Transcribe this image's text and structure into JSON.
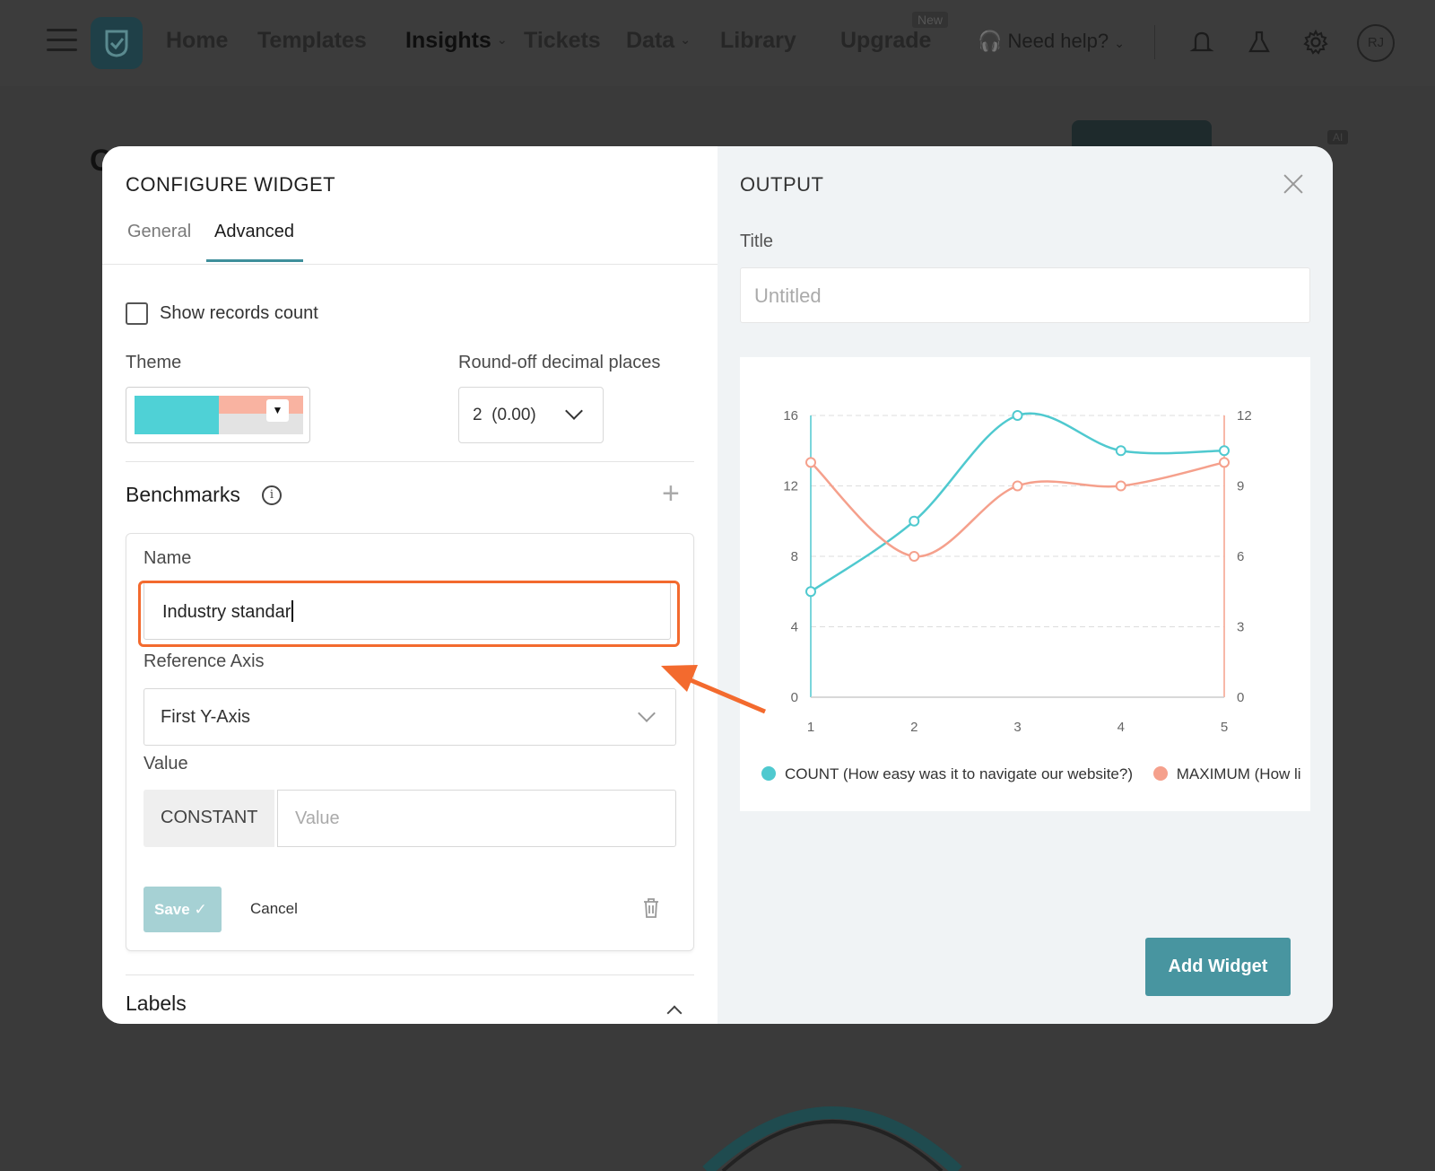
{
  "nav": {
    "items": [
      {
        "label": "Home",
        "dropdown": false
      },
      {
        "label": "Templates",
        "dropdown": false
      },
      {
        "label": "Insights",
        "dropdown": true
      },
      {
        "label": "Tickets",
        "dropdown": false
      },
      {
        "label": "Data",
        "dropdown": true
      },
      {
        "label": "Library",
        "dropdown": false
      },
      {
        "label": "Upgrade",
        "dropdown": false
      }
    ],
    "new_badge": "New",
    "help": "Need help?",
    "avatar_initials": "RJ",
    "icons": [
      "menu-icon",
      "app-logo-icon",
      "bell-icon",
      "flask-icon",
      "gear-icon"
    ]
  },
  "background": {
    "ai_badge": "AI"
  },
  "modal": {
    "title": "CONFIGURE WIDGET",
    "tabs": [
      {
        "label": "General",
        "active": false
      },
      {
        "label": "Advanced",
        "active": true
      }
    ],
    "show_records_count": {
      "label": "Show records count",
      "checked": false
    },
    "theme": {
      "label": "Theme",
      "colors": [
        "#4fd1d6",
        "#f9b3a1",
        "#e3e3e3"
      ]
    },
    "decimals": {
      "label": "Round-off decimal places",
      "value": "2  (0.00)"
    },
    "benchmarks": {
      "title": "Benchmarks",
      "name_label": "Name",
      "name_value": "Industry standar",
      "axis_label": "Reference Axis",
      "axis_value": "First Y-Axis",
      "value_label": "Value",
      "value_type": "CONSTANT",
      "value_placeholder": "Value",
      "save_label": "Save",
      "cancel_label": "Cancel"
    },
    "labels_section": "Labels"
  },
  "output": {
    "title": "OUTPUT",
    "title_field_label": "Title",
    "title_placeholder": "Untitled",
    "add_widget_label": "Add Widget",
    "accent": "#4895a0"
  },
  "chart_data": {
    "type": "line",
    "x": [
      1,
      2,
      3,
      4,
      5
    ],
    "series": [
      {
        "name": "COUNT (How easy was it to navigate our website?)",
        "axis": "left",
        "color": "#4fc9cf",
        "values": [
          6,
          10,
          16,
          14,
          14
        ]
      },
      {
        "name": "MAXIMUM (How li",
        "axis": "right",
        "color": "#f5a08c",
        "values": [
          10,
          6,
          9,
          9,
          10
        ]
      }
    ],
    "y_left": {
      "ticks": [
        0,
        4,
        8,
        12,
        16
      ],
      "range": [
        0,
        16
      ]
    },
    "y_right": {
      "ticks": [
        0,
        3,
        6,
        9,
        12
      ],
      "range": [
        0,
        12
      ]
    },
    "x_ticks": [
      "1",
      "2",
      "3",
      "4",
      "5"
    ],
    "grid": "horizontal-dashed",
    "legend_position": "bottom"
  }
}
